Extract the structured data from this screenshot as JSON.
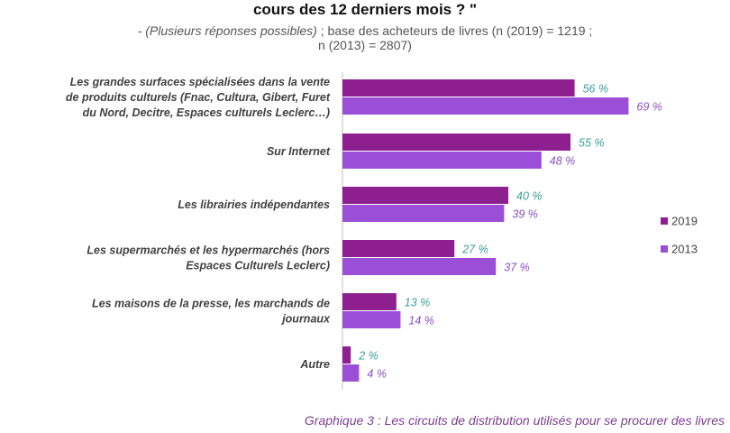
{
  "header": {
    "question_tail": "cours des 12 derniers mois ? \"",
    "note": "- (Plusieurs réponses possibles)",
    "base_line1": " ; base des acheteurs de livres (n (2019) = 1219 ;",
    "base_line2": "n (2013) = 2807)"
  },
  "caption": "Graphique 3 : Les circuits de distribution utilisés pour se procurer des livres",
  "colors": {
    "s2019": "#8e1f8f",
    "s2013": "#9b4fd6",
    "label2019": "#3a9c9c",
    "label2013": "#8a4fc4",
    "axis": "#bfbfbf"
  },
  "chart_data": {
    "type": "bar",
    "orientation": "horizontal",
    "xlim": [
      0,
      100
    ],
    "legend_position": "right",
    "grid": false,
    "categories": [
      [
        "Les grandes surfaces spécialisées dans la vente",
        "de produits culturels (Fnac, Cultura, Gibert, Furet",
        "du Nord, Decitre, Espaces culturels Leclerc…)"
      ],
      [
        "Sur Internet"
      ],
      [
        "Les librairies indépendantes"
      ],
      [
        "Les supermarchés et les hypermarchés (hors",
        "Espaces Culturels Leclerc)"
      ],
      [
        "Les maisons de la presse, les marchands de",
        "journaux"
      ],
      [
        "Autre"
      ]
    ],
    "series": [
      {
        "name": "2019",
        "values": [
          56,
          55,
          40,
          27,
          13,
          2
        ],
        "labels": [
          "56 %",
          "55 %",
          "40 %",
          "27 %",
          "13 %",
          "2 %"
        ]
      },
      {
        "name": "2013",
        "values": [
          69,
          48,
          39,
          37,
          14,
          4
        ],
        "labels": [
          "69 %",
          "48 %",
          "39 %",
          "37 %",
          "14 %",
          "4 %"
        ]
      }
    ]
  }
}
